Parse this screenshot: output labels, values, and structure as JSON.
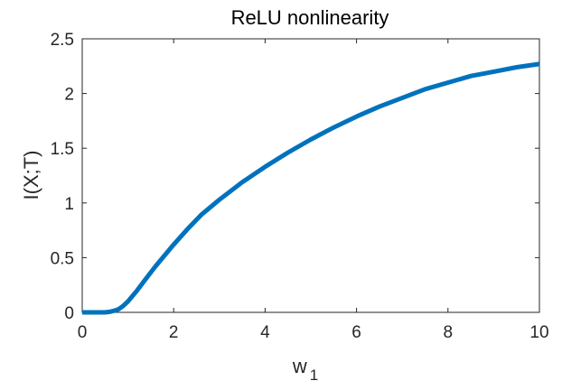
{
  "chart_data": {
    "type": "line",
    "title": "ReLU nonlinearity",
    "xlabel": "w",
    "xlabel_subscript": "1",
    "ylabel": "I(X;T)",
    "xlim": [
      0,
      10
    ],
    "ylim": [
      0,
      2.5
    ],
    "xticks": [
      0,
      2,
      4,
      6,
      8,
      10
    ],
    "xtick_labels": [
      "0",
      "2",
      "4",
      "6",
      "8",
      "10"
    ],
    "yticks": [
      0,
      0.5,
      1,
      1.5,
      2,
      2.5
    ],
    "ytick_labels": [
      "0",
      "0.5",
      "1",
      "1.5",
      "2",
      "2.5"
    ],
    "grid": false,
    "series": [
      {
        "color": "#0072BD",
        "x": [
          0,
          0.3,
          0.5,
          0.6,
          0.7,
          0.8,
          0.9,
          1.0,
          1.2,
          1.4,
          1.6,
          1.8,
          2.0,
          2.3,
          2.6,
          3.0,
          3.5,
          4.0,
          4.5,
          5.0,
          5.5,
          6.0,
          6.5,
          7.0,
          7.5,
          8.0,
          8.5,
          9.0,
          9.5,
          10.0
        ],
        "y": [
          0,
          0,
          0,
          0.005,
          0.015,
          0.03,
          0.06,
          0.1,
          0.2,
          0.31,
          0.42,
          0.52,
          0.62,
          0.76,
          0.89,
          1.03,
          1.19,
          1.33,
          1.46,
          1.58,
          1.69,
          1.79,
          1.88,
          1.96,
          2.04,
          2.1,
          2.16,
          2.2,
          2.24,
          2.27
        ]
      }
    ]
  }
}
